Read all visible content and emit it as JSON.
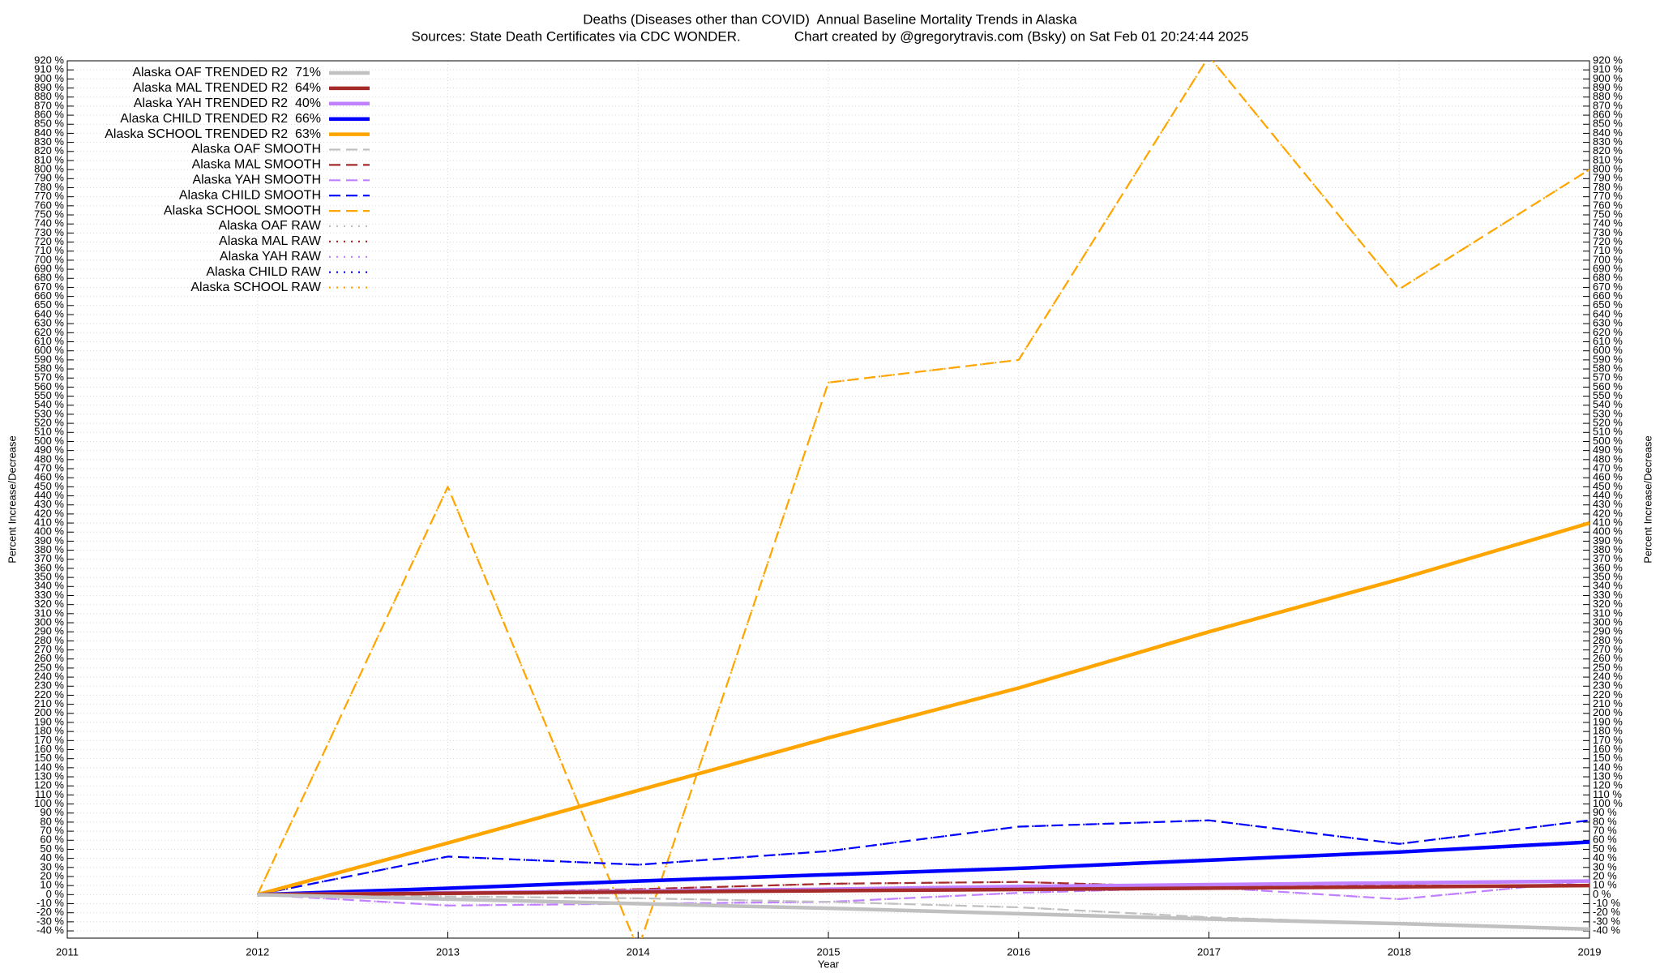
{
  "chart_data": {
    "type": "line",
    "title": "Deaths (Diseases other than COVID)  Annual Baseline Mortality Trends in Alaska",
    "subtitle": "Sources: State Death Certificates via CDC WONDER.              Chart created by @gregorytravis.com (Bsky) on Sat Feb 01 20:24:44 2025",
    "xlabel": "Year",
    "ylabel": "Percent Increase/Decrease",
    "y2label": "Percent Increase/Decrease",
    "x": [
      2012,
      2013,
      2014,
      2015,
      2016,
      2017,
      2018,
      2019
    ],
    "xlim": [
      2011,
      2019
    ],
    "xticks": [
      2011,
      2012,
      2013,
      2014,
      2015,
      2016,
      2017,
      2018,
      2019
    ],
    "ylim": [
      -48,
      920
    ],
    "grid": true,
    "legend": "upper left",
    "series": [
      {
        "name": "Alaska OAF TRENDED R2  71%",
        "color": "#c0c0c0",
        "dash": "solid",
        "values": [
          0,
          -5,
          -10,
          -15,
          -21,
          -27,
          -32,
          -38
        ]
      },
      {
        "name": "Alaska MAL TRENDED R2  64%",
        "color": "#a52a2a",
        "dash": "solid",
        "values": [
          0,
          1.4,
          2.9,
          4.3,
          5.7,
          7.1,
          8.6,
          10
        ]
      },
      {
        "name": "Alaska YAH TRENDED R2  40%",
        "color": "#c080ff",
        "dash": "solid",
        "values": [
          0,
          2,
          4,
          6,
          9,
          11,
          13,
          15
        ]
      },
      {
        "name": "Alaska CHILD TRENDED R2  66%",
        "color": "#0000ff",
        "dash": "solid",
        "values": [
          0,
          7,
          15,
          22,
          29,
          38,
          47,
          58
        ]
      },
      {
        "name": "Alaska SCHOOL TRENDED R2  63%",
        "color": "#ffa500",
        "dash": "solid",
        "values": [
          0,
          57,
          115,
          173,
          228,
          290,
          348,
          410
        ]
      },
      {
        "name": "Alaska OAF SMOOTH",
        "color": "#c0c0c0",
        "dash": "dashed",
        "values": [
          0,
          -2,
          -4,
          -8,
          -14,
          -25,
          -32,
          -38
        ]
      },
      {
        "name": "Alaska MAL SMOOTH",
        "color": "#a52a2a",
        "dash": "dashed",
        "values": [
          0,
          2,
          6,
          12,
          14,
          8,
          10,
          10
        ]
      },
      {
        "name": "Alaska YAH SMOOTH",
        "color": "#c080ff",
        "dash": "dashed",
        "values": [
          0,
          -12,
          -10,
          -8,
          2,
          8,
          -5,
          15
        ]
      },
      {
        "name": "Alaska CHILD SMOOTH",
        "color": "#0000ff",
        "dash": "dashed",
        "values": [
          0,
          42,
          33,
          48,
          75,
          82,
          56,
          82
        ]
      },
      {
        "name": "Alaska SCHOOL SMOOTH",
        "color": "#ffa500",
        "dash": "dashed",
        "values": [
          0,
          450,
          -60,
          565,
          590,
          925,
          668,
          800
        ]
      },
      {
        "name": "Alaska OAF RAW",
        "color": "#c0c0c0",
        "dash": "dotted",
        "values": [
          0,
          -2,
          -4,
          -8,
          -14,
          -25,
          -32,
          -38
        ]
      },
      {
        "name": "Alaska MAL RAW",
        "color": "#a52a2a",
        "dash": "dotted",
        "values": [
          0,
          2,
          6,
          12,
          14,
          8,
          10,
          10
        ]
      },
      {
        "name": "Alaska YAH RAW",
        "color": "#c080ff",
        "dash": "dotted",
        "values": [
          0,
          -12,
          -10,
          -8,
          2,
          8,
          -5,
          15
        ]
      },
      {
        "name": "Alaska CHILD RAW",
        "color": "#0000ff",
        "dash": "dotted",
        "values": [
          0,
          42,
          33,
          48,
          75,
          82,
          56,
          82
        ]
      },
      {
        "name": "Alaska SCHOOL RAW",
        "color": "#ffa500",
        "dash": "dotted",
        "values": [
          0,
          450,
          -60,
          565,
          590,
          925,
          668,
          800
        ]
      }
    ],
    "yticks": [
      {
        "value": -40,
        "label": "-40 %"
      },
      {
        "value": -30,
        "label": "-30 %"
      },
      {
        "value": -20,
        "label": "-20 %"
      },
      {
        "value": -10,
        "label": "-10 %"
      },
      {
        "value": 0,
        "label": "0 %"
      },
      {
        "value": 10,
        "label": "10 %"
      },
      {
        "value": 20,
        "label": "20 %"
      },
      {
        "value": 30,
        "label": "30 %"
      },
      {
        "value": 40,
        "label": "40 %"
      },
      {
        "value": 50,
        "label": "50 %"
      },
      {
        "value": 60,
        "label": "60 %"
      },
      {
        "value": 70,
        "label": "70 %"
      },
      {
        "value": 80,
        "label": "80 %"
      },
      {
        "value": 90,
        "label": "90 %"
      },
      {
        "value": 100,
        "label": "100 %"
      },
      {
        "value": 110,
        "label": "110 %"
      },
      {
        "value": 120,
        "label": "120 %"
      },
      {
        "value": 130,
        "label": "130 %"
      },
      {
        "value": 140,
        "label": "140 %"
      },
      {
        "value": 150,
        "label": "150 %"
      },
      {
        "value": 160,
        "label": "160 %"
      },
      {
        "value": 170,
        "label": "170 %"
      },
      {
        "value": 180,
        "label": "180 %"
      },
      {
        "value": 190,
        "label": "190 %"
      },
      {
        "value": 200,
        "label": "200 %"
      },
      {
        "value": 210,
        "label": "210 %"
      },
      {
        "value": 220,
        "label": "220 %"
      },
      {
        "value": 230,
        "label": "230 %"
      },
      {
        "value": 240,
        "label": "240 %"
      },
      {
        "value": 250,
        "label": "250 %"
      },
      {
        "value": 260,
        "label": "260 %"
      },
      {
        "value": 270,
        "label": "270 %"
      },
      {
        "value": 280,
        "label": "280 %"
      },
      {
        "value": 290,
        "label": "290 %"
      },
      {
        "value": 300,
        "label": "300 %"
      },
      {
        "value": 310,
        "label": "310 %"
      },
      {
        "value": 320,
        "label": "320 %"
      },
      {
        "value": 330,
        "label": "330 %"
      },
      {
        "value": 340,
        "label": "340 %"
      },
      {
        "value": 350,
        "label": "350 %"
      },
      {
        "value": 360,
        "label": "360 %"
      },
      {
        "value": 370,
        "label": "370 %"
      },
      {
        "value": 380,
        "label": "380 %"
      },
      {
        "value": 390,
        "label": "390 %"
      },
      {
        "value": 400,
        "label": "400 %"
      },
      {
        "value": 410,
        "label": "410 %"
      },
      {
        "value": 420,
        "label": "420 %"
      },
      {
        "value": 430,
        "label": "430 %"
      },
      {
        "value": 440,
        "label": "440 %"
      },
      {
        "value": 450,
        "label": "450 %"
      },
      {
        "value": 460,
        "label": "460 %"
      },
      {
        "value": 470,
        "label": "470 %"
      },
      {
        "value": 480,
        "label": "480 %"
      },
      {
        "value": 490,
        "label": "490 %"
      },
      {
        "value": 500,
        "label": "500 %"
      },
      {
        "value": 510,
        "label": "510 %"
      },
      {
        "value": 520,
        "label": "520 %"
      },
      {
        "value": 530,
        "label": "530 %"
      },
      {
        "value": 540,
        "label": "540 %"
      },
      {
        "value": 550,
        "label": "550 %"
      },
      {
        "value": 560,
        "label": "560 %"
      },
      {
        "value": 570,
        "label": "570 %"
      },
      {
        "value": 580,
        "label": "580 %"
      },
      {
        "value": 590,
        "label": "590 %"
      },
      {
        "value": 600,
        "label": "600 %"
      },
      {
        "value": 610,
        "label": "610 %"
      },
      {
        "value": 620,
        "label": "620 %"
      },
      {
        "value": 630,
        "label": "630 %"
      },
      {
        "value": 640,
        "label": "640 %"
      },
      {
        "value": 650,
        "label": "650 %"
      },
      {
        "value": 660,
        "label": "660 %"
      },
      {
        "value": 670,
        "label": "670 %"
      },
      {
        "value": 680,
        "label": "680 %"
      },
      {
        "value": 690,
        "label": "690 %"
      },
      {
        "value": 700,
        "label": "700 %"
      },
      {
        "value": 710,
        "label": "710 %"
      },
      {
        "value": 720,
        "label": "720 %"
      },
      {
        "value": 730,
        "label": "730 %"
      },
      {
        "value": 740,
        "label": "740 %"
      },
      {
        "value": 750,
        "label": "750 %"
      },
      {
        "value": 760,
        "label": "760 %"
      },
      {
        "value": 770,
        "label": "770 %"
      },
      {
        "value": 780,
        "label": "780 %"
      },
      {
        "value": 790,
        "label": "790 %"
      },
      {
        "value": 800,
        "label": "800 %"
      },
      {
        "value": 810,
        "label": "810 %"
      },
      {
        "value": 820,
        "label": "820 %"
      },
      {
        "value": 830,
        "label": "830 %"
      },
      {
        "value": 840,
        "label": "840 %"
      },
      {
        "value": 850,
        "label": "850 %"
      },
      {
        "value": 860,
        "label": "860 %"
      },
      {
        "value": 870,
        "label": "870 %"
      },
      {
        "value": 880,
        "label": "880 %"
      },
      {
        "value": 890,
        "label": "890 %"
      },
      {
        "value": 900,
        "label": "900 %"
      },
      {
        "value": 910,
        "label": "910 %"
      },
      {
        "value": 920,
        "label": "920 %"
      }
    ]
  }
}
